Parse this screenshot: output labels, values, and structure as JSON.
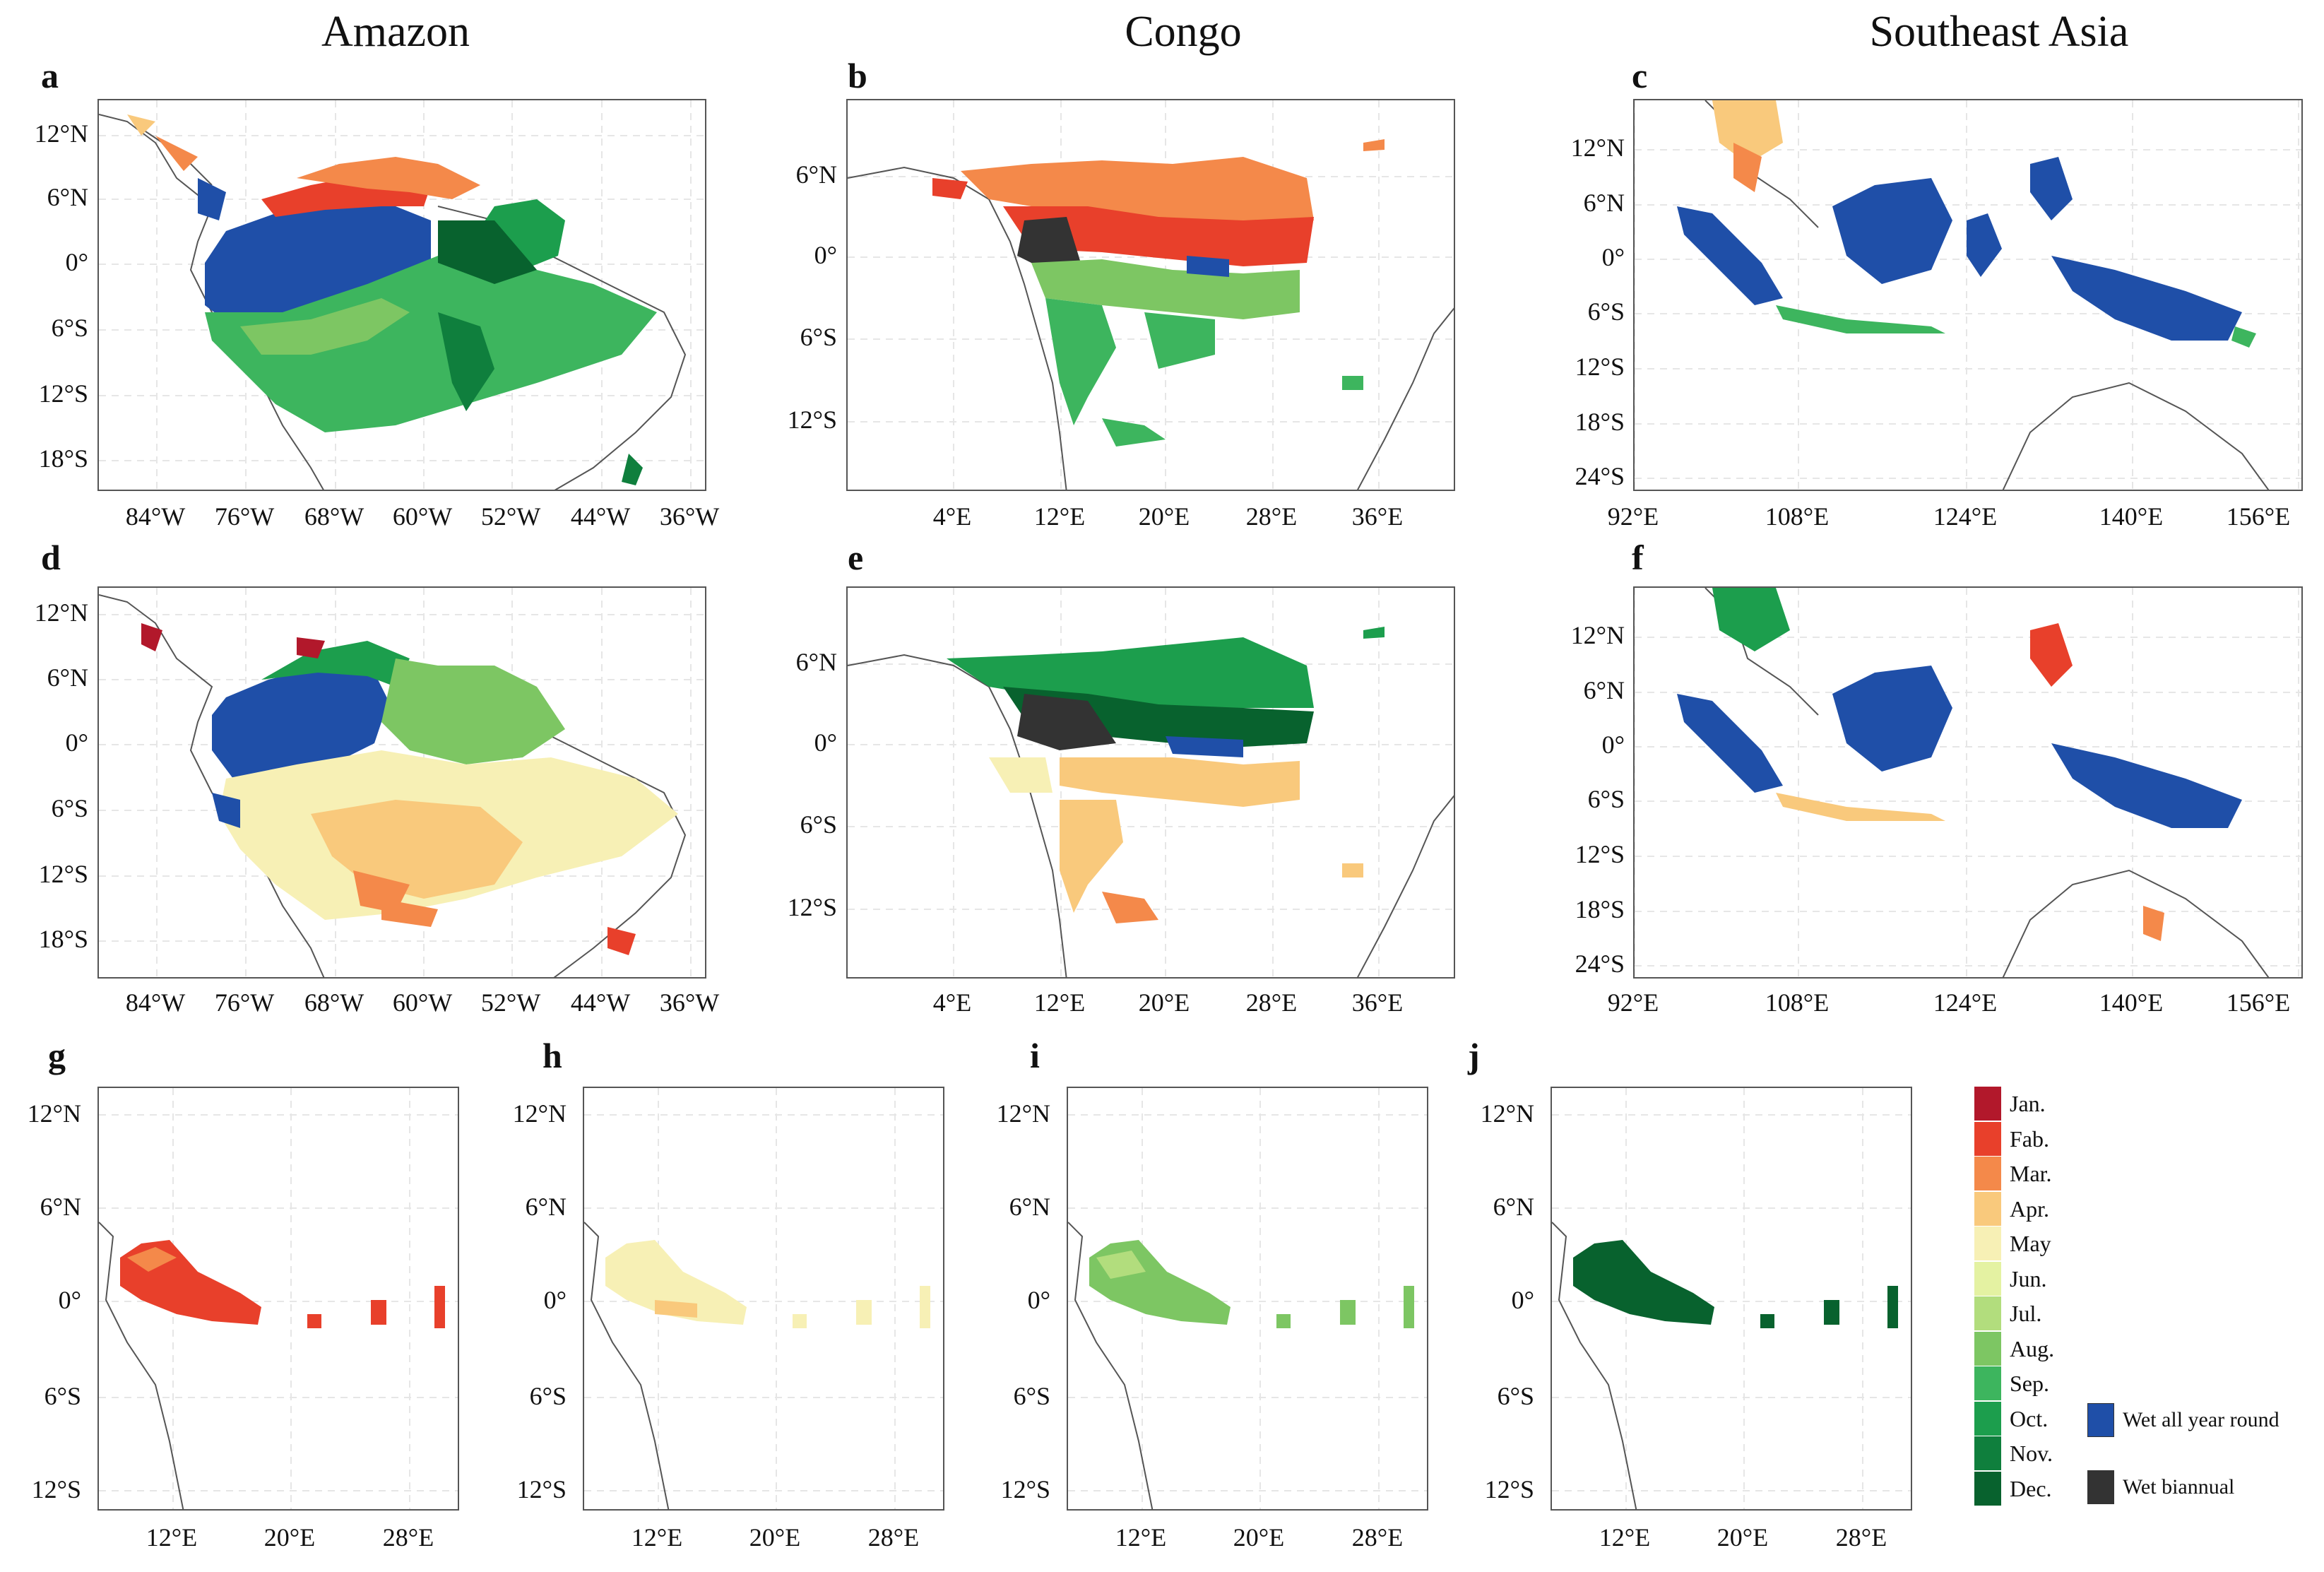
{
  "columns": [
    "Amazon",
    "Congo",
    "Southeast Asia"
  ],
  "panel_letters": [
    "a",
    "b",
    "c",
    "d",
    "e",
    "f",
    "g",
    "h",
    "i",
    "j"
  ],
  "axes": {
    "amazon": {
      "y": [
        "12°N",
        "6°N",
        "0°",
        "6°S",
        "12°S",
        "18°S"
      ],
      "x": [
        "84°W",
        "76°W",
        "68°W",
        "60°W",
        "52°W",
        "44°W",
        "36°W"
      ]
    },
    "congo": {
      "y": [
        "6°N",
        "0°",
        "6°S",
        "12°S"
      ],
      "x": [
        "4°E",
        "12°E",
        "20°E",
        "28°E",
        "36°E"
      ]
    },
    "sea": {
      "y": [
        "12°N",
        "6°N",
        "0°",
        "6°S",
        "12°S",
        "18°S",
        "24°S"
      ],
      "x": [
        "92°E",
        "108°E",
        "124°E",
        "140°E",
        "156°E"
      ]
    },
    "small": {
      "y": [
        "12°N",
        "6°N",
        "0°",
        "6°S",
        "12°S"
      ],
      "x": [
        "12°E",
        "20°E",
        "28°E"
      ]
    }
  },
  "legend": {
    "months": [
      "Jan.",
      "Fab.",
      "Mar.",
      "Apr.",
      "May",
      "Jun.",
      "Jul.",
      "Aug.",
      "Sep.",
      "Oct.",
      "Nov.",
      "Dec."
    ],
    "month_colors": [
      "#b2182b",
      "#e8402b",
      "#f4894a",
      "#f9c97c",
      "#f7f0b5",
      "#e4f2a2",
      "#b2dd7d",
      "#7dc663",
      "#3db55e",
      "#1c9e4d",
      "#0f7f3d",
      "#08622e"
    ],
    "wet_all_year": "Wet all year round",
    "wet_all_year_color": "#1f4fa8",
    "wet_biannual": "Wet biannual",
    "wet_biannual_color": "#333333"
  }
}
